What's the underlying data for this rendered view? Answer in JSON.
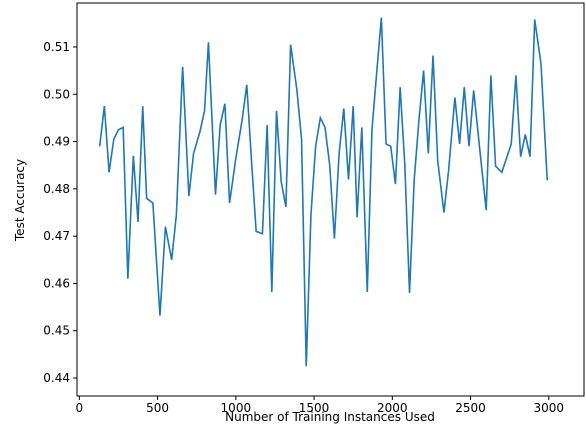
{
  "chart_data": {
    "type": "line",
    "xlabel": "Number of Training Instances Used",
    "ylabel": "Test Accuracy",
    "xlim": [
      -15,
      3225
    ],
    "ylim": [
      0.4362,
      0.5193
    ],
    "xticks": [
      0,
      500,
      1000,
      1500,
      2000,
      2500,
      3000
    ],
    "yticks": [
      0.44,
      0.45,
      0.46,
      0.47,
      0.48,
      0.49,
      {
        "value": 0.5,
        "label": "0.50"
      },
      0.51
    ],
    "x": [
      130,
      160,
      190,
      220,
      250,
      280,
      310,
      345,
      375,
      405,
      430,
      470,
      515,
      550,
      590,
      620,
      660,
      700,
      730,
      770,
      800,
      825,
      870,
      900,
      930,
      960,
      1000,
      1040,
      1070,
      1100,
      1130,
      1170,
      1200,
      1230,
      1260,
      1290,
      1320,
      1350,
      1390,
      1420,
      1450,
      1480,
      1510,
      1540,
      1570,
      1600,
      1630,
      1660,
      1690,
      1720,
      1750,
      1775,
      1805,
      1840,
      1870,
      1900,
      1930,
      1960,
      1990,
      2020,
      2050,
      2080,
      2110,
      2140,
      2170,
      2200,
      2230,
      2260,
      2290,
      2330,
      2360,
      2400,
      2430,
      2460,
      2490,
      2520,
      2560,
      2600,
      2630,
      2660,
      2700,
      2760,
      2790,
      2820,
      2850,
      2880,
      2910,
      2950,
      2990
    ],
    "series": [
      {
        "color": "#1f77b4",
        "values": [
          0.489,
          0.4975,
          0.4835,
          0.4905,
          0.4925,
          0.493,
          0.461,
          0.487,
          0.473,
          0.4975,
          0.478,
          0.477,
          0.4532,
          0.472,
          0.465,
          0.4745,
          0.5058,
          0.4785,
          0.4875,
          0.492,
          0.4965,
          0.511,
          0.4788,
          0.4935,
          0.498,
          0.477,
          0.4865,
          0.4945,
          0.502,
          0.486,
          0.471,
          0.4705,
          0.4935,
          0.4582,
          0.4965,
          0.4815,
          0.4762,
          0.5105,
          0.501,
          0.4905,
          0.4425,
          0.4745,
          0.489,
          0.495,
          0.493,
          0.485,
          0.4695,
          0.4875,
          0.497,
          0.482,
          0.4975,
          0.474,
          0.493,
          0.4582,
          0.4925,
          0.5045,
          0.5162,
          0.4895,
          0.489,
          0.481,
          0.5015,
          0.485,
          0.458,
          0.482,
          0.4945,
          0.505,
          0.4875,
          0.5082,
          0.486,
          0.475,
          0.484,
          0.4993,
          0.4895,
          0.5015,
          0.489,
          0.5008,
          0.488,
          0.4755,
          0.504,
          0.4848,
          0.4835,
          0.4895,
          0.504,
          0.4868,
          0.4915,
          0.4868,
          0.5158,
          0.5065,
          0.4818
        ]
      }
    ]
  }
}
